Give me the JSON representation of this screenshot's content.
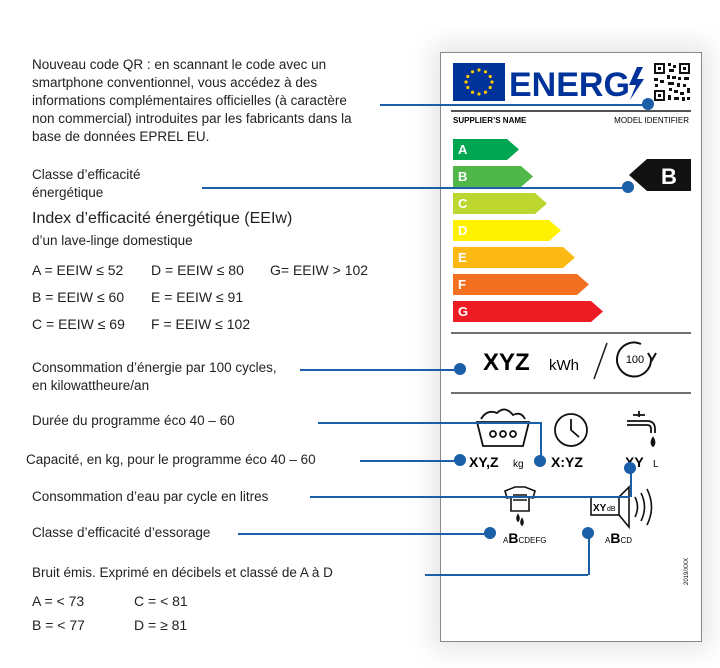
{
  "annotations": {
    "qr_code": "Nouveau code QR : en scannant le code avec un smartphone conventionnel, vous accédez à des informations complémentaires officielles (à caractère non commercial) introduites par les fabricants dans la base de données EPREL EU.",
    "efficiency_class": "Classe d’efficacité énergétique",
    "eei_title": "Index d’efficacité énergétique (EEIw)",
    "eei_subtitle": "d’un lave-linge domestique",
    "eei_rows": [
      [
        "A = EEIW  ≤ 52",
        "D = EEIW ≤ 80",
        "G= EEIW > 102"
      ],
      [
        "B = EEIW  ≤ 60",
        "E = EEIW ≤ 91",
        ""
      ],
      [
        "C = EEIW ≤ 69",
        "F = EEIW ≤ 102",
        ""
      ]
    ],
    "energy_consumption": "Consommation d’énergie par 100 cycles, en kilowattheure/an",
    "programme_duration": "Durée du programme éco 40 – 60",
    "capacity": "Capacité, en kg, pour le programme éco 40 – 60",
    "water_consumption": "Consommation d’eau par cycle en litres",
    "spin_class": "Classe d’efficacité d’essorage",
    "noise": "Bruit émis. Exprimé en décibels et classé de A à D",
    "noise_rows": [
      [
        "A = < 73",
        "C = < 81"
      ],
      [
        "B = < 77",
        "D = ≥ 81"
      ]
    ]
  },
  "label": {
    "energy_word": "ENERG",
    "supplier": "SUPPLIER’S NAME",
    "model": "MODEL IDENTIFIER",
    "classes": [
      "A",
      "B",
      "C",
      "D",
      "E",
      "F",
      "G"
    ],
    "class_colors": [
      "#00a651",
      "#50b848",
      "#bed630",
      "#fff200",
      "#fdb913",
      "#f37021",
      "#ed1c24"
    ],
    "selected_class": "B",
    "energy_value": "XYZ",
    "energy_unit": "kWh",
    "cycles": "100",
    "capacity_value": "XY,Z",
    "capacity_unit": "kg",
    "duration_value": "X:YZ",
    "water_value": "XY",
    "water_unit": "L",
    "noise_value": "XY",
    "noise_unit": "dB",
    "spin_scale": {
      "pre": "A",
      "sel": "B",
      "post": "CDEFG"
    },
    "noise_scale": {
      "pre": "A",
      "sel": "B",
      "post": "CD"
    },
    "regulation": "2019/XXX"
  }
}
